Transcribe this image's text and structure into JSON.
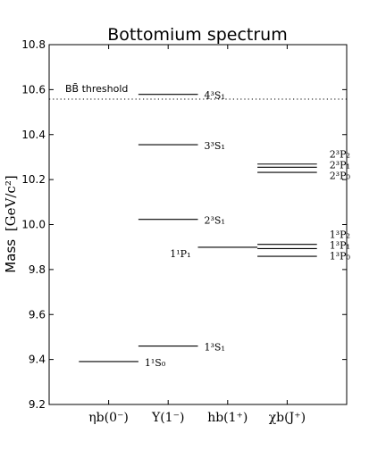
{
  "chart_data": {
    "type": "table",
    "title": "Bottomium spectrum",
    "ylabel": "Mass [GeV/c²]",
    "ylabel_prefix": "Mass",
    "ylabel_unit": "[GeV/c²]",
    "ylim": [
      9.2,
      10.8
    ],
    "yticks": [
      9.2,
      9.4,
      9.6,
      9.8,
      10.0,
      10.2,
      10.4,
      10.6,
      10.8
    ],
    "xlim": [
      0,
      5
    ],
    "categories": [
      {
        "x": 1,
        "label": "ηb(0⁻)"
      },
      {
        "x": 2,
        "label": "Υ(1⁻)"
      },
      {
        "x": 3,
        "label": "hb(1⁺)"
      },
      {
        "x": 4,
        "label": "χb(J⁺)"
      }
    ],
    "threshold": {
      "label": "BB̄ threshold",
      "mass": 10.558
    },
    "levels": [
      {
        "category": 1,
        "mass": 9.391,
        "label": "1¹S₀"
      },
      {
        "category": 2,
        "mass": 9.46,
        "label": "1³S₁"
      },
      {
        "category": 2,
        "mass": 10.023,
        "label": "2³S₁"
      },
      {
        "category": 2,
        "mass": 10.355,
        "label": "3³S₁"
      },
      {
        "category": 2,
        "mass": 10.579,
        "label": "4³S₁"
      },
      {
        "category": 3,
        "mass": 9.899,
        "label": "1¹P₁"
      },
      {
        "category": 4,
        "mass": 9.859,
        "label": "1³P₀"
      },
      {
        "category": 4,
        "mass": 9.893,
        "label": "1³P₁"
      },
      {
        "category": 4,
        "mass": 9.912,
        "label": "1³P₂"
      },
      {
        "category": 4,
        "mass": 10.232,
        "label": "2³P₀"
      },
      {
        "category": 4,
        "mass": 10.255,
        "label": "2³P₁"
      },
      {
        "category": 4,
        "mass": 10.269,
        "label": "2³P₂"
      }
    ]
  }
}
